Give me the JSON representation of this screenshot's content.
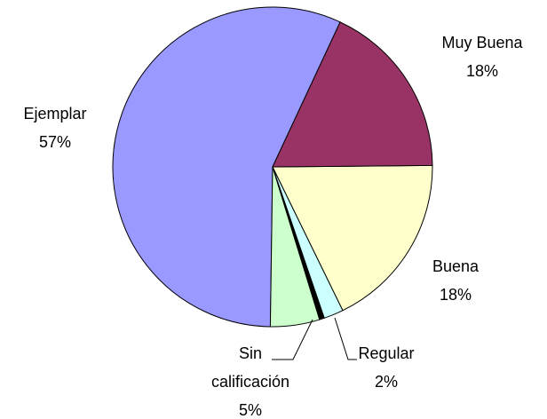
{
  "chart_data": {
    "type": "pie",
    "categories": [
      "Muy Buena",
      "Buena",
      "Regular",
      null,
      "Sin calificación",
      "Ejemplar"
    ],
    "values": [
      18,
      18,
      2,
      0.5,
      5,
      57
    ],
    "value_labels": [
      "18%",
      "18%",
      "2%",
      null,
      "5%",
      "57%"
    ],
    "colors": [
      "#993366",
      "#ffffcc",
      "#ccffff",
      "#000000",
      "#ccffcc",
      "#9999ff"
    ]
  }
}
